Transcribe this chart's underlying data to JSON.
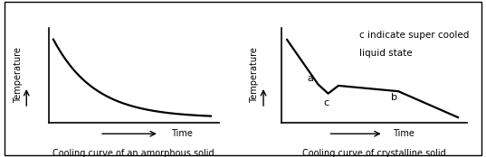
{
  "title_left": "Cooling curve of an amorphous solid",
  "title_right": "Cooling curve of crystalline solid",
  "ylabel": "Temperature",
  "xlabel": "Time",
  "annotation_line1": "c indicate super cooled",
  "annotation_line2": "liquid state",
  "label_a": "a",
  "label_b": "b",
  "label_c": "c",
  "bg_color": "#ffffff",
  "line_color": "#000000",
  "fontsize_axis_label": 7,
  "fontsize_title": 7,
  "fontsize_annotation": 7.5,
  "fontsize_abc": 8
}
